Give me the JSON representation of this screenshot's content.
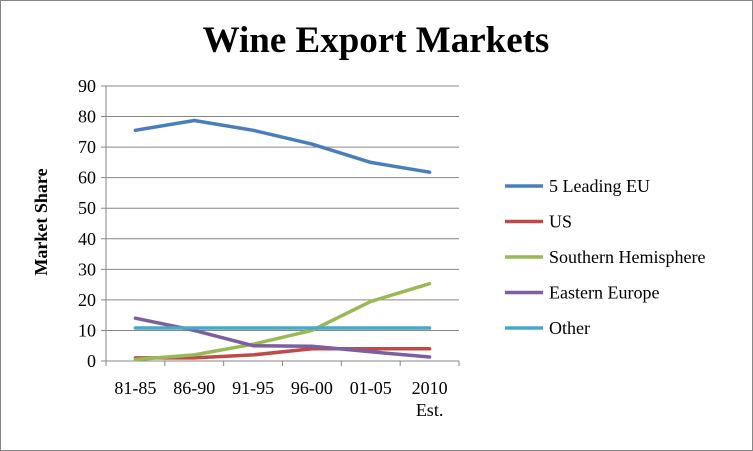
{
  "chart_data": {
    "type": "line",
    "title": "Wine Export Markets",
    "xlabel": "",
    "ylabel": "Market Share",
    "ylim": [
      0,
      90
    ],
    "y_ticks": [
      0,
      10,
      20,
      30,
      40,
      50,
      60,
      70,
      80,
      90
    ],
    "grid": true,
    "legend_position": "right",
    "categories": [
      {
        "line1": "81-85",
        "line2": ""
      },
      {
        "line1": "86-90",
        "line2": ""
      },
      {
        "line1": "91-95",
        "line2": ""
      },
      {
        "line1": "96-00",
        "line2": ""
      },
      {
        "line1": "01-05",
        "line2": ""
      },
      {
        "line1": "2010",
        "line2": "Est."
      }
    ],
    "series": [
      {
        "name": "5 Leading EU",
        "color": "#4a7ebb",
        "values": [
          75.5,
          78.7,
          75.5,
          71,
          65,
          61.8
        ]
      },
      {
        "name": "US",
        "color": "#be4b48",
        "values": [
          1,
          1,
          2,
          4,
          4,
          4
        ]
      },
      {
        "name": "Southern Hemisphere",
        "color": "#98b954",
        "values": [
          0.5,
          2,
          5.5,
          10,
          19.5,
          25.3
        ]
      },
      {
        "name": "Eastern Europe",
        "color": "#7d5fa0",
        "values": [
          14,
          10,
          5,
          4.8,
          3,
          1.3
        ]
      },
      {
        "name": "Other",
        "color": "#46aac5",
        "values": [
          10.8,
          10.8,
          10.8,
          10.8,
          10.8,
          10.8
        ]
      }
    ]
  }
}
